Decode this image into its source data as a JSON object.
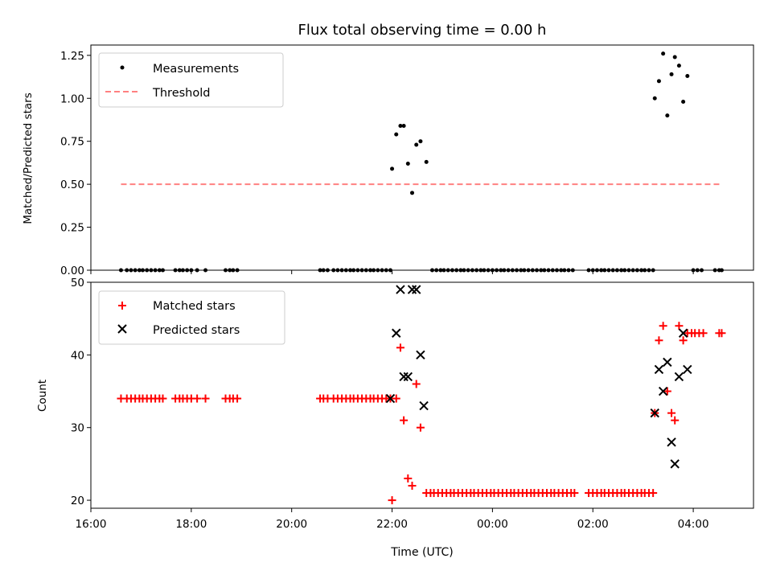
{
  "chart_data": [
    {
      "type": "scatter",
      "title": "Flux total observing time = 0.00 h",
      "ylabel": "Matched/Predicted stars",
      "xlabel": "",
      "xlim": [
        "16:00",
        "05:12"
      ],
      "ylim": [
        0,
        1.31
      ],
      "yticks": [
        0.0,
        0.25,
        0.5,
        0.75,
        1.0,
        1.25
      ],
      "ytick_labels": [
        "0.00",
        "0.25",
        "0.50",
        "0.75",
        "1.00",
        "1.25"
      ],
      "grid": false,
      "legend": {
        "placement": "top-left",
        "entries": [
          "Measurements",
          "Threshold"
        ]
      },
      "series": [
        {
          "name": "Measurements",
          "color": "#000000",
          "marker": "dot",
          "points": [
            [
              "16:36",
              0
            ],
            [
              "16:43",
              0
            ],
            [
              "16:48",
              0
            ],
            [
              "16:53",
              0
            ],
            [
              "16:58",
              0
            ],
            [
              "17:02",
              0
            ],
            [
              "17:07",
              0
            ],
            [
              "17:12",
              0
            ],
            [
              "17:17",
              0
            ],
            [
              "17:22",
              0
            ],
            [
              "17:26",
              0
            ],
            [
              "17:41",
              0
            ],
            [
              "17:46",
              0
            ],
            [
              "17:50",
              0
            ],
            [
              "17:55",
              0
            ],
            [
              "18:00",
              0
            ],
            [
              "18:07",
              0
            ],
            [
              "18:17",
              0
            ],
            [
              "18:41",
              0
            ],
            [
              "18:46",
              0
            ],
            [
              "18:50",
              0
            ],
            [
              "18:55",
              0
            ],
            [
              "20:34",
              0
            ],
            [
              "20:38",
              0
            ],
            [
              "20:43",
              0
            ],
            [
              "20:50",
              0
            ],
            [
              "20:55",
              0
            ],
            [
              "21:00",
              0
            ],
            [
              "21:05",
              0
            ],
            [
              "21:10",
              0
            ],
            [
              "21:14",
              0
            ],
            [
              "21:19",
              0
            ],
            [
              "21:24",
              0
            ],
            [
              "21:29",
              0
            ],
            [
              "21:34",
              0
            ],
            [
              "21:38",
              0
            ],
            [
              "21:43",
              0
            ],
            [
              "21:48",
              0
            ],
            [
              "21:53",
              0
            ],
            [
              "21:58",
              0
            ],
            [
              "22:00",
              0.59
            ],
            [
              "22:05",
              0.79
            ],
            [
              "22:10",
              0.84
            ],
            [
              "22:14",
              0.84
            ],
            [
              "22:19",
              0.62
            ],
            [
              "22:24",
              0.45
            ],
            [
              "22:29",
              0.73
            ],
            [
              "22:34",
              0.75
            ],
            [
              "22:41",
              0.63
            ],
            [
              "22:48",
              0
            ],
            [
              "22:53",
              0
            ],
            [
              "22:58",
              0
            ],
            [
              "23:02",
              0
            ],
            [
              "23:07",
              0
            ],
            [
              "23:12",
              0
            ],
            [
              "23:17",
              0
            ],
            [
              "23:22",
              0
            ],
            [
              "23:26",
              0
            ],
            [
              "23:31",
              0
            ],
            [
              "23:36",
              0
            ],
            [
              "23:41",
              0
            ],
            [
              "23:46",
              0
            ],
            [
              "23:50",
              0
            ],
            [
              "23:55",
              0
            ],
            [
              "00:00",
              0
            ],
            [
              "00:05",
              0
            ],
            [
              "00:10",
              0
            ],
            [
              "00:14",
              0
            ],
            [
              "00:19",
              0
            ],
            [
              "00:24",
              0
            ],
            [
              "00:29",
              0
            ],
            [
              "00:34",
              0
            ],
            [
              "00:38",
              0
            ],
            [
              "00:43",
              0
            ],
            [
              "00:48",
              0
            ],
            [
              "00:53",
              0
            ],
            [
              "00:58",
              0
            ],
            [
              "01:02",
              0
            ],
            [
              "01:07",
              0
            ],
            [
              "01:12",
              0
            ],
            [
              "01:17",
              0
            ],
            [
              "01:22",
              0
            ],
            [
              "01:26",
              0
            ],
            [
              "01:31",
              0
            ],
            [
              "01:36",
              0
            ],
            [
              "01:55",
              0
            ],
            [
              "02:00",
              0
            ],
            [
              "02:05",
              0
            ],
            [
              "02:10",
              0
            ],
            [
              "02:14",
              0
            ],
            [
              "02:19",
              0
            ],
            [
              "02:24",
              0
            ],
            [
              "02:29",
              0
            ],
            [
              "02:34",
              0
            ],
            [
              "02:38",
              0
            ],
            [
              "02:43",
              0
            ],
            [
              "02:48",
              0
            ],
            [
              "02:53",
              0
            ],
            [
              "02:58",
              0
            ],
            [
              "03:02",
              0
            ],
            [
              "03:07",
              0
            ],
            [
              "03:12",
              0
            ],
            [
              "03:14",
              1.0
            ],
            [
              "03:19",
              1.1
            ],
            [
              "03:24",
              1.26
            ],
            [
              "03:29",
              0.9
            ],
            [
              "03:34",
              1.14
            ],
            [
              "03:38",
              1.24
            ],
            [
              "03:43",
              1.19
            ],
            [
              "03:48",
              0.98
            ],
            [
              "03:53",
              1.13
            ],
            [
              "04:00",
              0
            ],
            [
              "04:05",
              0
            ],
            [
              "04:10",
              0
            ],
            [
              "04:26",
              0
            ],
            [
              "04:31",
              0
            ],
            [
              "04:34",
              0
            ]
          ]
        },
        {
          "name": "Threshold",
          "color": "#ff8080",
          "style": "dashed",
          "points": [
            [
              "16:36",
              0.5
            ],
            [
              "04:34",
              0.5
            ]
          ]
        }
      ]
    },
    {
      "type": "scatter",
      "title": "",
      "ylabel": "Count",
      "xlabel": "Time (UTC)",
      "xlim": [
        "16:00",
        "05:12"
      ],
      "ylim": [
        18.9,
        50
      ],
      "yticks": [
        20,
        30,
        40,
        50
      ],
      "ytick_labels": [
        "20",
        "30",
        "40",
        "50"
      ],
      "xticks": [
        "16:00",
        "18:00",
        "20:00",
        "22:00",
        "00:00",
        "02:00",
        "04:00"
      ],
      "grid": false,
      "legend": {
        "placement": "top-left",
        "entries": [
          "Matched stars",
          "Predicted stars"
        ]
      },
      "series": [
        {
          "name": "Matched stars",
          "color": "#ff0000",
          "marker": "plus",
          "points": [
            [
              "16:36",
              34
            ],
            [
              "16:43",
              34
            ],
            [
              "16:48",
              34
            ],
            [
              "16:53",
              34
            ],
            [
              "16:58",
              34
            ],
            [
              "17:02",
              34
            ],
            [
              "17:07",
              34
            ],
            [
              "17:12",
              34
            ],
            [
              "17:17",
              34
            ],
            [
              "17:22",
              34
            ],
            [
              "17:26",
              34
            ],
            [
              "17:41",
              34
            ],
            [
              "17:46",
              34
            ],
            [
              "17:50",
              34
            ],
            [
              "17:55",
              34
            ],
            [
              "18:00",
              34
            ],
            [
              "18:07",
              34
            ],
            [
              "18:17",
              34
            ],
            [
              "18:41",
              34
            ],
            [
              "18:46",
              34
            ],
            [
              "18:50",
              34
            ],
            [
              "18:55",
              34
            ],
            [
              "20:34",
              34
            ],
            [
              "20:38",
              34
            ],
            [
              "20:43",
              34
            ],
            [
              "20:50",
              34
            ],
            [
              "20:55",
              34
            ],
            [
              "21:00",
              34
            ],
            [
              "21:05",
              34
            ],
            [
              "21:10",
              34
            ],
            [
              "21:14",
              34
            ],
            [
              "21:19",
              34
            ],
            [
              "21:24",
              34
            ],
            [
              "21:29",
              34
            ],
            [
              "21:34",
              34
            ],
            [
              "21:38",
              34
            ],
            [
              "21:43",
              34
            ],
            [
              "21:48",
              34
            ],
            [
              "21:53",
              34
            ],
            [
              "21:58",
              34
            ],
            [
              "22:00",
              20
            ],
            [
              "22:05",
              34
            ],
            [
              "22:10",
              41
            ],
            [
              "22:14",
              31
            ],
            [
              "22:19",
              23
            ],
            [
              "22:24",
              22
            ],
            [
              "22:29",
              36
            ],
            [
              "22:34",
              30
            ],
            [
              "22:41",
              21
            ],
            [
              "22:46",
              21
            ],
            [
              "22:50",
              21
            ],
            [
              "22:55",
              21
            ],
            [
              "23:00",
              21
            ],
            [
              "23:05",
              21
            ],
            [
              "23:10",
              21
            ],
            [
              "23:14",
              21
            ],
            [
              "23:19",
              21
            ],
            [
              "23:24",
              21
            ],
            [
              "23:29",
              21
            ],
            [
              "23:34",
              21
            ],
            [
              "23:38",
              21
            ],
            [
              "23:43",
              21
            ],
            [
              "23:48",
              21
            ],
            [
              "23:53",
              21
            ],
            [
              "23:58",
              21
            ],
            [
              "00:02",
              21
            ],
            [
              "00:07",
              21
            ],
            [
              "00:12",
              21
            ],
            [
              "00:17",
              21
            ],
            [
              "00:22",
              21
            ],
            [
              "00:26",
              21
            ],
            [
              "00:31",
              21
            ],
            [
              "00:36",
              21
            ],
            [
              "00:41",
              21
            ],
            [
              "00:46",
              21
            ],
            [
              "00:50",
              21
            ],
            [
              "00:55",
              21
            ],
            [
              "01:00",
              21
            ],
            [
              "01:05",
              21
            ],
            [
              "01:10",
              21
            ],
            [
              "01:14",
              21
            ],
            [
              "01:19",
              21
            ],
            [
              "01:24",
              21
            ],
            [
              "01:29",
              21
            ],
            [
              "01:34",
              21
            ],
            [
              "01:38",
              21
            ],
            [
              "01:55",
              21
            ],
            [
              "02:00",
              21
            ],
            [
              "02:05",
              21
            ],
            [
              "02:10",
              21
            ],
            [
              "02:14",
              21
            ],
            [
              "02:19",
              21
            ],
            [
              "02:24",
              21
            ],
            [
              "02:29",
              21
            ],
            [
              "02:34",
              21
            ],
            [
              "02:38",
              21
            ],
            [
              "02:43",
              21
            ],
            [
              "02:48",
              21
            ],
            [
              "02:53",
              21
            ],
            [
              "02:58",
              21
            ],
            [
              "03:02",
              21
            ],
            [
              "03:07",
              21
            ],
            [
              "03:12",
              21
            ],
            [
              "03:14",
              32
            ],
            [
              "03:19",
              42
            ],
            [
              "03:24",
              44
            ],
            [
              "03:29",
              35
            ],
            [
              "03:34",
              32
            ],
            [
              "03:38",
              31
            ],
            [
              "03:43",
              44
            ],
            [
              "03:48",
              42
            ],
            [
              "03:53",
              43
            ],
            [
              "03:58",
              43
            ],
            [
              "04:02",
              43
            ],
            [
              "04:07",
              43
            ],
            [
              "04:12",
              43
            ],
            [
              "04:31",
              43
            ],
            [
              "04:34",
              43
            ]
          ]
        },
        {
          "name": "Predicted stars",
          "color": "#000000",
          "marker": "x",
          "points": [
            [
              "21:58",
              34
            ],
            [
              "22:05",
              43
            ],
            [
              "22:10",
              49
            ],
            [
              "22:14",
              37
            ],
            [
              "22:19",
              37
            ],
            [
              "22:24",
              49
            ],
            [
              "22:29",
              49
            ],
            [
              "22:34",
              40
            ],
            [
              "22:38",
              33
            ],
            [
              "03:14",
              32
            ],
            [
              "03:19",
              38
            ],
            [
              "03:24",
              35
            ],
            [
              "03:29",
              39
            ],
            [
              "03:34",
              28
            ],
            [
              "03:38",
              25
            ],
            [
              "03:43",
              37
            ],
            [
              "03:48",
              43
            ],
            [
              "03:53",
              38
            ]
          ]
        }
      ]
    }
  ],
  "figure": {
    "x_axis_label": "Time (UTC)"
  }
}
